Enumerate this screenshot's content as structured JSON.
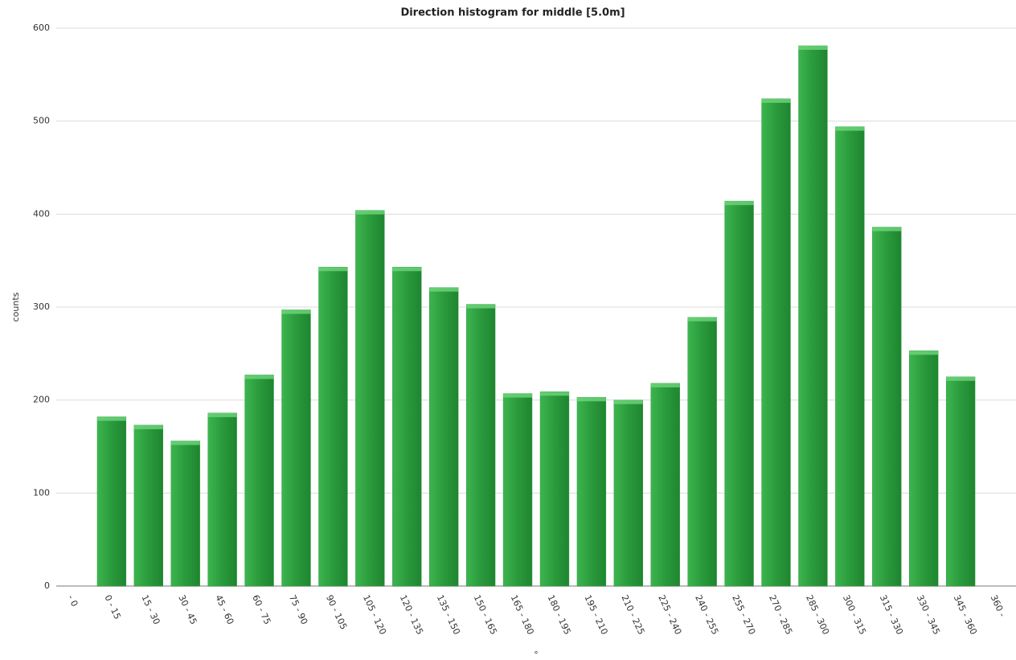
{
  "chart_data": {
    "type": "bar",
    "title": "Direction histogram for middle [5.0m]",
    "x_label": "°",
    "y_label": "counts",
    "categories": [
      "- 0",
      "0 - 15",
      "15 - 30",
      "30 - 45",
      "45 - 60",
      "60 - 75",
      "75 - 90",
      "90 - 105",
      "105 - 120",
      "120 - 135",
      "135 - 150",
      "150 - 165",
      "165 - 180",
      "180 - 195",
      "195 - 210",
      "210 - 225",
      "225 - 240",
      "240 - 255",
      "255 - 270",
      "270 - 285",
      "285 - 300",
      "300 - 315",
      "315 - 330",
      "330 - 345",
      "345 - 360",
      "360 -"
    ],
    "values": [
      null,
      182,
      173,
      156,
      186,
      227,
      297,
      343,
      404,
      343,
      321,
      303,
      207,
      209,
      203,
      200,
      218,
      289,
      414,
      524,
      581,
      494,
      386,
      253,
      225,
      null
    ],
    "color": "#2a9a3c",
    "ylim": [
      0,
      600
    ],
    "yticks": [
      0,
      100,
      200,
      300,
      400,
      500,
      600
    ],
    "grid": true
  }
}
